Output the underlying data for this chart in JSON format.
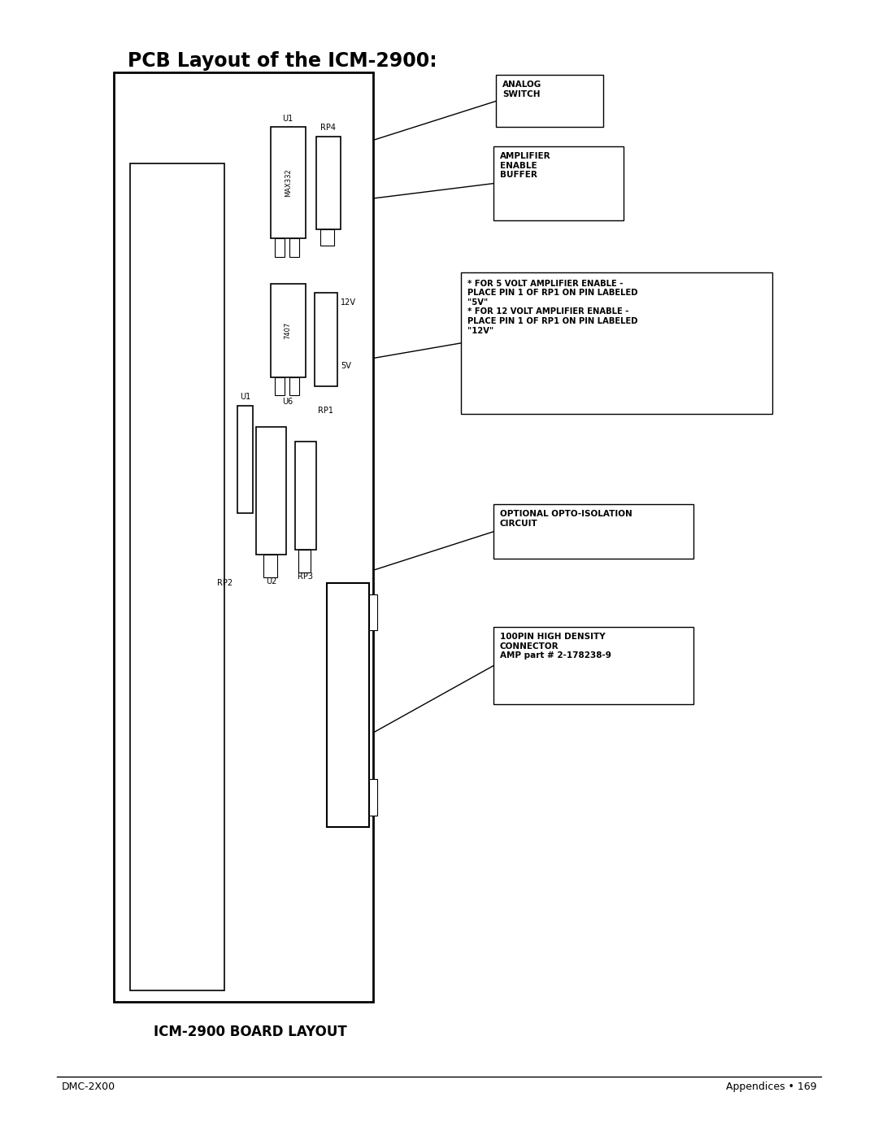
{
  "title": "PCB Layout of the ICM-2900:",
  "footer_left": "DMC-2X00",
  "footer_right": "Appendices • 169",
  "caption": "ICM-2900 BOARD LAYOUT",
  "bg_color": "#ffffff"
}
